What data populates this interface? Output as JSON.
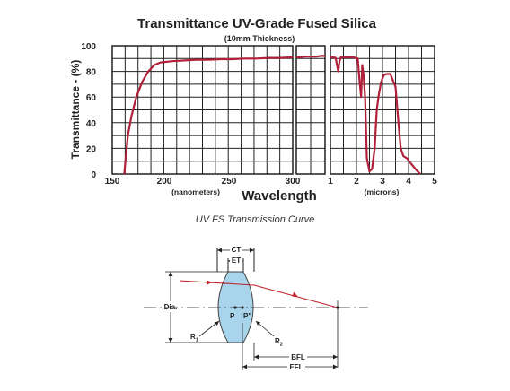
{
  "chart_data": {
    "type": "line",
    "title": "Transmittance UV-Grade Fused Silica",
    "subtitle": "(10mm Thickness)",
    "ylabel": "Transmittance - (%)",
    "xlabel": "Wavelength",
    "ylim": [
      0,
      100
    ],
    "yticks": [
      "0",
      "20",
      "40",
      "60",
      "80",
      "100"
    ],
    "grid": true,
    "line_color": "#b0203a",
    "panels": [
      {
        "unit_label": "(nanometers)",
        "xlim": [
          150,
          300
        ],
        "xticks": [
          "150",
          "200",
          "250",
          "300"
        ],
        "series": [
          {
            "x": [
              160,
              161,
              163,
              166,
              170,
              175,
              180,
              185,
              190,
              200,
              210,
              220,
              230,
              240,
              250,
              260,
              270,
              280,
              290,
              300
            ],
            "y": [
              0,
              10,
              30,
              45,
              60,
              72,
              80,
              85,
              87,
              88,
              88.5,
              89,
              89,
              89.5,
              89.5,
              90,
              90,
              90.5,
              90.5,
              91
            ]
          }
        ]
      },
      {
        "unit_label": "",
        "xlim": [
          300,
          500
        ],
        "xticks": [],
        "series": [
          {
            "x": [
              300,
              330,
              360,
              400,
              440,
              470,
              500
            ],
            "y": [
              91,
              91,
              91.5,
              91.5,
              91.5,
              92,
              92
            ]
          }
        ]
      },
      {
        "unit_label": "(microns)",
        "xlim": [
          1,
          5
        ],
        "xticks": [
          "1",
          "2",
          "3",
          "4",
          "5"
        ],
        "series": [
          {
            "x": [
              1.0,
              1.1,
              1.2,
              1.3,
              1.35,
              1.4,
              1.5,
              1.7,
              1.9,
              2.05,
              2.12,
              2.18,
              2.22,
              2.27,
              2.33,
              2.4,
              2.5,
              2.6,
              2.7,
              2.78,
              2.86,
              2.95,
              3.05,
              3.15,
              3.3,
              3.5,
              3.62,
              3.7,
              3.8,
              3.95,
              4.1,
              4.3,
              4.45
            ],
            "y": [
              91,
              91,
              90.5,
              80,
              88,
              91,
              91,
              91,
              91,
              90,
              72,
              60,
              85,
              78,
              60,
              12,
              2,
              4,
              20,
              50,
              62,
              72,
              77,
              78,
              78,
              68,
              38,
              20,
              14,
              12,
              8,
              3,
              0
            ]
          }
        ]
      }
    ]
  },
  "caption": "UV FS Transmission Curve",
  "lens_diagram": {
    "labels": {
      "ct": "CT",
      "et": "ET",
      "dia": "Dia.",
      "p": "P",
      "p_prime": "P\"",
      "r1": "R",
      "r1_sub": "1",
      "r2": "R",
      "r2_sub": "2",
      "bfl": "BFL",
      "efl": "EFL"
    },
    "lens_fill": "#a8d4ec",
    "ray_color": "#c0202a"
  }
}
